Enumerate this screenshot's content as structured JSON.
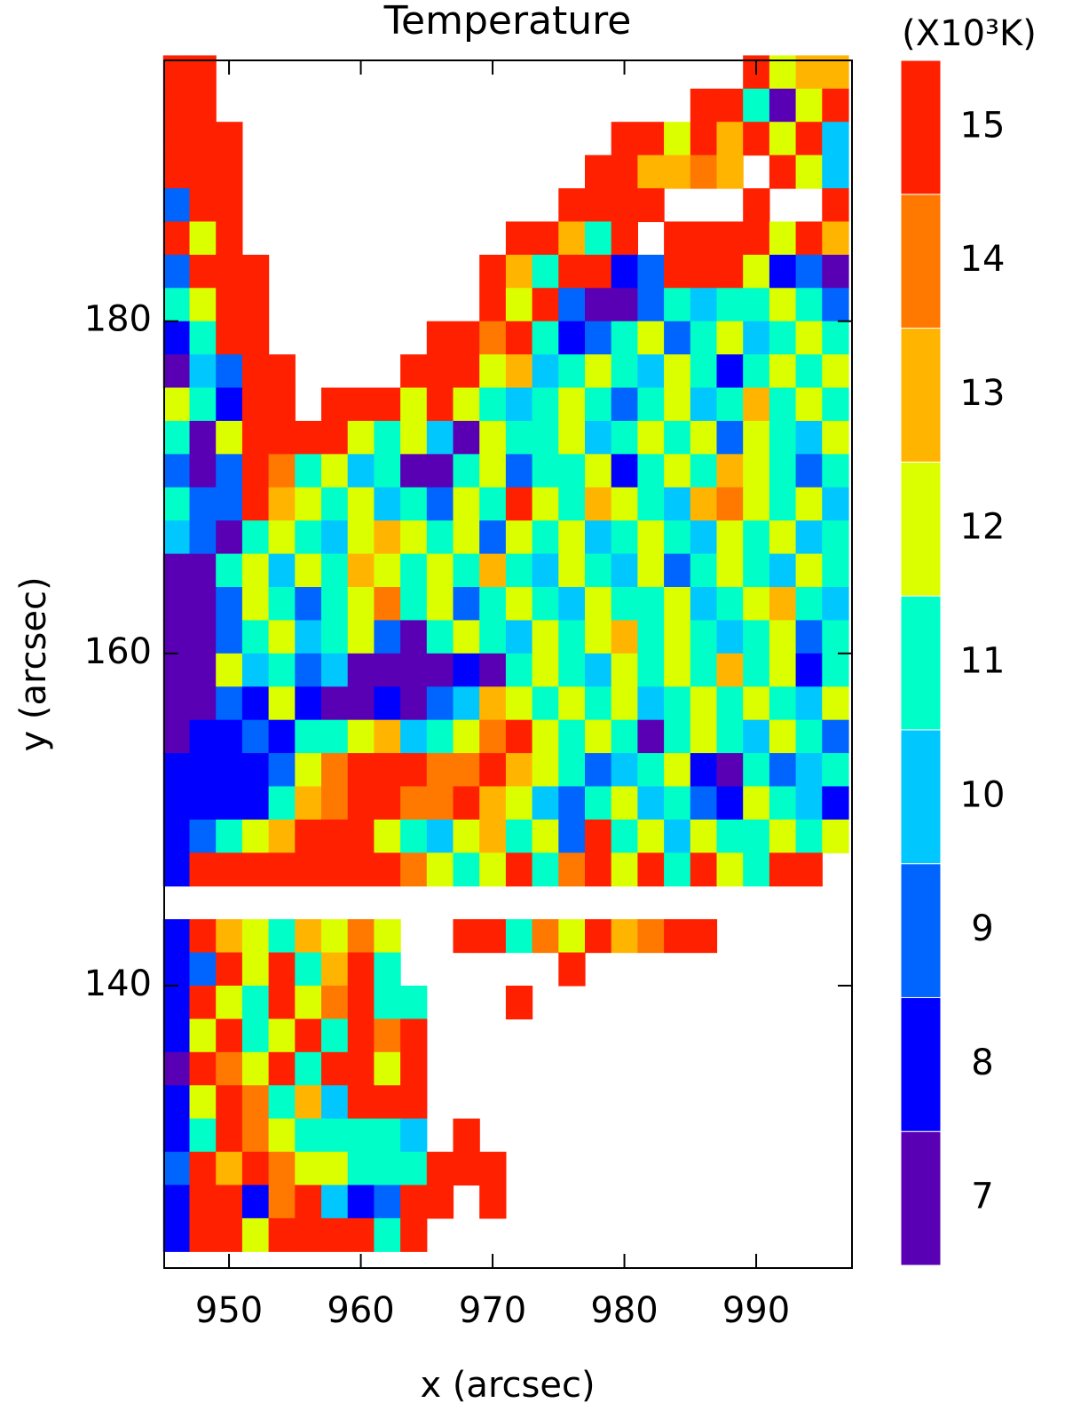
{
  "chart_data": {
    "type": "heatmap",
    "title": "Temperature",
    "x_label": "x (arcsec)",
    "y_label": "y (arcsec)",
    "xlim": [
      945.08,
      997.27
    ],
    "ylim": [
      123.0,
      195.7
    ],
    "xticks": [
      950,
      960,
      970,
      980,
      990
    ],
    "yticks": [
      140,
      160,
      180
    ],
    "x": [
      946,
      948,
      950,
      952,
      954,
      956,
      958,
      960,
      962,
      964,
      966,
      968,
      970,
      972,
      974,
      976,
      978,
      980,
      982,
      984,
      986,
      988,
      990,
      992,
      994,
      996
    ],
    "y": [
      195,
      193,
      191,
      189,
      187,
      185,
      183,
      181,
      179,
      177,
      175,
      173,
      171,
      169,
      167,
      165,
      163,
      161,
      159,
      157,
      155,
      153,
      151,
      149,
      147,
      145,
      143,
      141,
      139,
      137,
      135,
      133,
      131,
      129,
      127,
      125
    ],
    "z": [
      [
        15,
        15,
        null,
        null,
        null,
        null,
        null,
        null,
        null,
        null,
        null,
        null,
        null,
        null,
        null,
        null,
        null,
        null,
        null,
        null,
        null,
        null,
        15,
        12,
        13,
        13
      ],
      [
        15,
        15,
        null,
        null,
        null,
        null,
        null,
        null,
        null,
        null,
        null,
        null,
        null,
        null,
        null,
        null,
        null,
        null,
        null,
        null,
        15,
        15,
        11,
        7,
        12,
        15
      ],
      [
        15,
        15,
        15,
        null,
        null,
        null,
        null,
        null,
        null,
        null,
        null,
        null,
        null,
        null,
        null,
        null,
        null,
        15,
        15,
        12,
        15,
        13,
        15,
        12,
        15,
        10
      ],
      [
        15,
        15,
        15,
        null,
        null,
        null,
        null,
        null,
        null,
        null,
        null,
        null,
        null,
        null,
        null,
        null,
        15,
        15,
        13,
        13,
        14,
        13,
        null,
        15,
        12,
        10
      ],
      [
        9,
        15,
        15,
        null,
        null,
        null,
        null,
        null,
        null,
        null,
        null,
        null,
        null,
        null,
        null,
        15,
        15,
        15,
        15,
        null,
        null,
        null,
        15,
        null,
        null,
        15
      ],
      [
        15,
        12,
        15,
        null,
        null,
        null,
        null,
        null,
        null,
        null,
        null,
        null,
        null,
        15,
        15,
        13,
        11,
        15,
        null,
        15,
        15,
        15,
        15,
        12,
        15,
        13
      ],
      [
        9,
        15,
        15,
        15,
        null,
        null,
        null,
        null,
        null,
        null,
        null,
        null,
        15,
        13,
        11,
        15,
        15,
        8,
        9,
        15,
        15,
        15,
        12,
        8,
        9,
        7
      ],
      [
        11,
        12,
        15,
        15,
        null,
        null,
        null,
        null,
        null,
        null,
        null,
        null,
        15,
        12,
        15,
        9,
        7,
        7,
        9,
        11,
        10,
        11,
        11,
        12,
        11,
        9
      ],
      [
        8,
        11,
        15,
        15,
        null,
        null,
        null,
        null,
        null,
        null,
        15,
        15,
        14,
        15,
        11,
        8,
        9,
        11,
        12,
        9,
        11,
        12,
        10,
        11,
        12,
        11
      ],
      [
        7,
        10,
        9,
        15,
        15,
        null,
        null,
        null,
        null,
        15,
        15,
        15,
        12,
        13,
        10,
        11,
        12,
        11,
        10,
        12,
        11,
        8,
        11,
        12,
        11,
        12
      ],
      [
        12,
        11,
        8,
        15,
        15,
        null,
        15,
        15,
        15,
        12,
        15,
        12,
        11,
        10,
        11,
        12,
        11,
        9,
        11,
        12,
        10,
        11,
        13,
        11,
        12,
        11
      ],
      [
        11,
        7,
        12,
        15,
        15,
        15,
        15,
        12,
        11,
        12,
        10,
        7,
        12,
        11,
        11,
        12,
        10,
        11,
        12,
        11,
        12,
        9,
        12,
        11,
        10,
        12
      ],
      [
        9,
        7,
        9,
        15,
        14,
        11,
        12,
        10,
        11,
        7,
        7,
        11,
        12,
        9,
        11,
        11,
        12,
        8,
        11,
        12,
        11,
        13,
        12,
        11,
        9,
        11
      ],
      [
        11,
        9,
        9,
        15,
        13,
        12,
        11,
        12,
        10,
        11,
        9,
        12,
        11,
        15,
        12,
        11,
        13,
        12,
        11,
        10,
        13,
        14,
        12,
        11,
        12,
        10
      ],
      [
        10,
        9,
        7,
        11,
        12,
        11,
        10,
        12,
        13,
        12,
        11,
        12,
        9,
        12,
        11,
        12,
        10,
        11,
        12,
        11,
        10,
        12,
        11,
        12,
        10,
        11
      ],
      [
        7,
        7,
        11,
        12,
        10,
        12,
        11,
        13,
        12,
        11,
        12,
        11,
        13,
        11,
        10,
        12,
        11,
        10,
        12,
        9,
        11,
        12,
        11,
        10,
        12,
        11
      ],
      [
        7,
        7,
        9,
        12,
        11,
        9,
        11,
        12,
        14,
        11,
        12,
        9,
        11,
        12,
        11,
        10,
        12,
        11,
        11,
        12,
        10,
        11,
        12,
        13,
        11,
        10
      ],
      [
        7,
        7,
        9,
        11,
        12,
        10,
        11,
        12,
        9,
        7,
        11,
        12,
        11,
        10,
        12,
        11,
        12,
        13,
        11,
        12,
        11,
        10,
        11,
        12,
        9,
        11
      ],
      [
        7,
        7,
        12,
        10,
        11,
        9,
        10,
        7,
        7,
        7,
        7,
        8,
        7,
        11,
        12,
        11,
        10,
        12,
        11,
        12,
        11,
        13,
        11,
        12,
        8,
        11
      ],
      [
        7,
        7,
        9,
        8,
        12,
        8,
        7,
        7,
        8,
        7,
        9,
        10,
        13,
        12,
        11,
        12,
        11,
        12,
        10,
        11,
        12,
        11,
        12,
        11,
        10,
        12
      ],
      [
        7,
        8,
        8,
        9,
        8,
        11,
        11,
        12,
        13,
        10,
        11,
        12,
        14,
        15,
        12,
        11,
        12,
        11,
        7,
        11,
        12,
        11,
        10,
        12,
        11,
        9
      ],
      [
        8,
        8,
        8,
        8,
        9,
        12,
        14,
        15,
        15,
        15,
        14,
        14,
        15,
        13,
        12,
        11,
        9,
        10,
        11,
        12,
        8,
        7,
        11,
        9,
        10,
        11
      ],
      [
        8,
        8,
        8,
        8,
        11,
        13,
        14,
        15,
        15,
        14,
        14,
        15,
        13,
        12,
        10,
        9,
        11,
        12,
        10,
        11,
        9,
        8,
        12,
        11,
        10,
        8
      ],
      [
        8,
        9,
        11,
        12,
        13,
        15,
        15,
        15,
        12,
        11,
        10,
        12,
        13,
        11,
        12,
        9,
        15,
        11,
        12,
        10,
        12,
        11,
        11,
        12,
        11,
        12
      ],
      [
        8,
        15,
        15,
        15,
        15,
        15,
        15,
        15,
        15,
        14,
        12,
        11,
        12,
        15,
        11,
        14,
        15,
        12,
        15,
        11,
        15,
        12,
        11,
        15,
        15,
        null
      ],
      [
        null,
        null,
        null,
        null,
        null,
        null,
        null,
        null,
        null,
        null,
        null,
        null,
        null,
        null,
        null,
        null,
        null,
        null,
        null,
        null,
        null,
        null,
        null,
        null,
        null,
        null
      ],
      [
        8,
        15,
        13,
        12,
        11,
        13,
        12,
        14,
        12,
        null,
        null,
        15,
        15,
        11,
        14,
        12,
        15,
        13,
        14,
        15,
        15,
        null,
        null,
        null,
        null,
        null
      ],
      [
        8,
        9,
        15,
        12,
        15,
        11,
        13,
        15,
        11,
        null,
        null,
        null,
        null,
        null,
        null,
        15,
        null,
        null,
        null,
        null,
        null,
        null,
        null,
        null,
        null,
        null
      ],
      [
        8,
        15,
        12,
        11,
        15,
        12,
        14,
        15,
        11,
        11,
        null,
        null,
        null,
        15,
        null,
        null,
        null,
        null,
        null,
        null,
        null,
        null,
        null,
        null,
        null,
        null
      ],
      [
        8,
        12,
        15,
        11,
        12,
        15,
        11,
        15,
        14,
        15,
        null,
        null,
        null,
        null,
        null,
        null,
        null,
        null,
        null,
        null,
        null,
        null,
        null,
        null,
        null,
        null
      ],
      [
        7,
        15,
        14,
        12,
        15,
        11,
        15,
        15,
        12,
        15,
        null,
        null,
        null,
        null,
        null,
        null,
        null,
        null,
        null,
        null,
        null,
        null,
        null,
        null,
        null,
        null
      ],
      [
        8,
        12,
        15,
        14,
        11,
        13,
        10,
        15,
        15,
        15,
        null,
        null,
        null,
        null,
        null,
        null,
        null,
        null,
        null,
        null,
        null,
        null,
        null,
        null,
        null,
        null
      ],
      [
        8,
        11,
        15,
        14,
        12,
        11,
        11,
        11,
        11,
        10,
        null,
        15,
        null,
        null,
        null,
        null,
        null,
        null,
        null,
        null,
        null,
        null,
        null,
        null,
        null,
        null
      ],
      [
        9,
        15,
        13,
        15,
        14,
        12,
        12,
        11,
        11,
        11,
        15,
        15,
        15,
        null,
        null,
        null,
        null,
        null,
        null,
        null,
        null,
        null,
        null,
        null,
        null,
        null
      ],
      [
        8,
        15,
        15,
        8,
        14,
        15,
        10,
        8,
        9,
        15,
        15,
        null,
        15,
        null,
        null,
        null,
        null,
        null,
        null,
        null,
        null,
        null,
        null,
        null,
        null,
        null
      ],
      [
        8,
        15,
        15,
        12,
        15,
        15,
        15,
        15,
        11,
        15,
        null,
        null,
        null,
        null,
        null,
        null,
        null,
        null,
        null,
        null,
        null,
        null,
        null,
        null,
        null,
        null
      ]
    ],
    "colorbar": {
      "label": "(X10³K)",
      "levels": [
        7,
        8,
        9,
        10,
        11,
        12,
        13,
        14,
        15
      ],
      "colors": [
        "#5a00b4",
        "#0000ff",
        "#0064ff",
        "#00c8ff",
        "#00ffc8",
        "#dcff00",
        "#ffb400",
        "#ff7800",
        "#ff2000"
      ]
    }
  }
}
